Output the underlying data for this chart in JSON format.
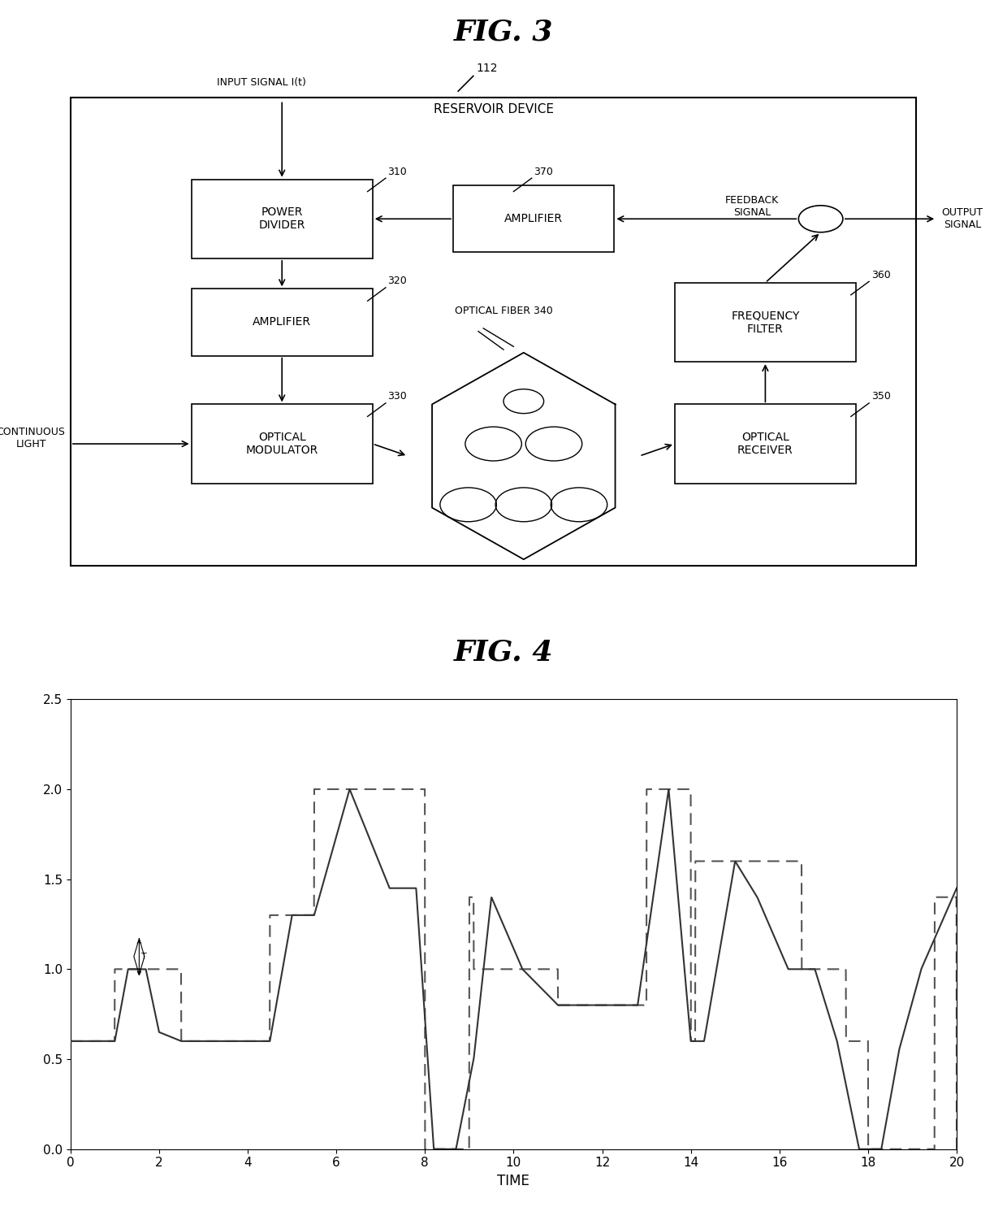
{
  "fig3_title": "FIG. 3",
  "fig4_title": "FIG. 4",
  "reservoir_label": "RESERVOIR DEVICE",
  "ref_112": "112",
  "ref_310": "310",
  "ref_320": "320",
  "ref_330": "330",
  "ref_340": "OPTICAL FIBER 340",
  "ref_350": "350",
  "ref_360": "360",
  "ref_370": "370",
  "input_signal_label": "INPUT SIGNAL I(t)",
  "continuous_light_label": "CONTINUOUS\nLIGHT",
  "feedback_signal_label": "FEEDBACK\nSIGNAL",
  "output_signal_label": "OUTPUT\nSIGNAL",
  "background_color": "#ffffff",
  "text_color": "#000000",
  "plot_ylabel_ticks": [
    0,
    0.5,
    1,
    1.5,
    2,
    2.5
  ],
  "plot_xlabel_ticks": [
    0,
    2,
    4,
    6,
    8,
    10,
    12,
    14,
    16,
    18,
    20
  ],
  "plot_xlabel": "TIME",
  "plot_ylim": [
    0,
    2.5
  ],
  "plot_xlim": [
    0,
    20
  ]
}
